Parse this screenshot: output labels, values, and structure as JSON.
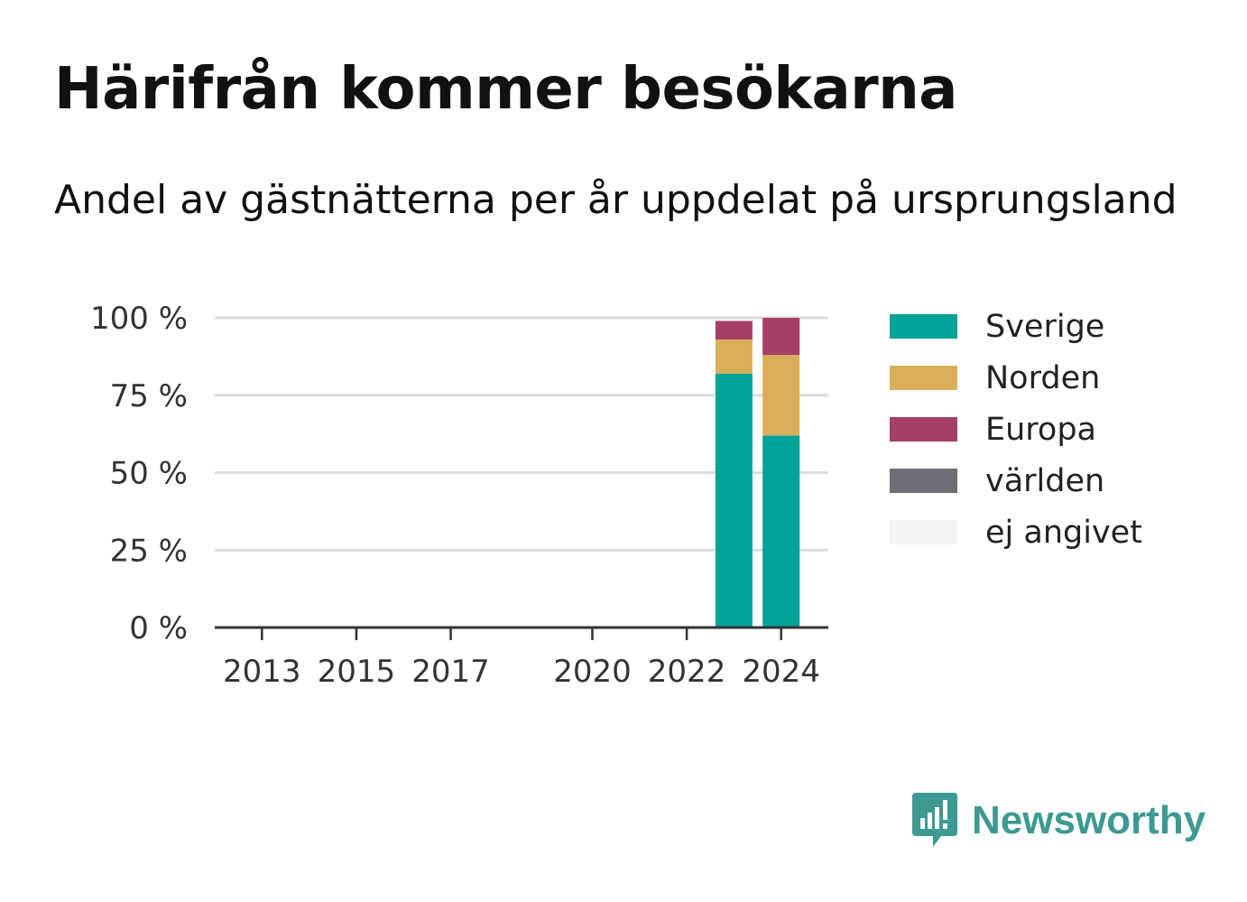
{
  "header": {
    "title": "Härifrån kommer besökarna",
    "subtitle": "Andel av gästnätterna per år uppdelat på ursprungsland"
  },
  "chart_data": {
    "type": "bar",
    "stacked": true,
    "title": "Härifrån kommer besökarna",
    "subtitle": "Andel av gästnätterna per år uppdelat på ursprungsland",
    "x": [
      2023,
      2024
    ],
    "x_ticks": [
      "2013",
      "2015",
      "2017",
      "2020",
      "2022",
      "2024"
    ],
    "xlim": [
      2012,
      2025
    ],
    "y_ticks": [
      "0 %",
      "25 %",
      "50 %",
      "75 %",
      "100 %"
    ],
    "ylim": [
      0,
      100
    ],
    "grid": true,
    "legend_position": "right",
    "series": [
      {
        "name": "Sverige",
        "color": "#00a398",
        "values": [
          82,
          62
        ]
      },
      {
        "name": "Norden",
        "color": "#dbae59",
        "values": [
          11,
          26
        ]
      },
      {
        "name": "Europa",
        "color": "#a63f68",
        "values": [
          6,
          12
        ]
      },
      {
        "name": "världen",
        "color": "#6f6f77",
        "values": [
          0,
          0
        ]
      },
      {
        "name": "ej angivet",
        "color": "#f4f4f3",
        "values": [
          0,
          0
        ]
      }
    ]
  },
  "branding": {
    "name": "Newsworthy",
    "icon": "newsworthy-logo-icon",
    "color": "#3c9a92"
  }
}
